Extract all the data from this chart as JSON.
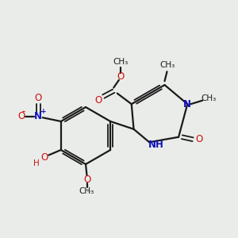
{
  "bg_color": "#eaece9",
  "bond_color": "#1a1a1a",
  "red": "#cc1111",
  "blue": "#1111bb",
  "black": "#1a1a1a",
  "figsize": [
    3.0,
    3.0
  ],
  "dpi": 100,
  "xlim": [
    0,
    10
  ],
  "ylim": [
    0,
    10
  ]
}
